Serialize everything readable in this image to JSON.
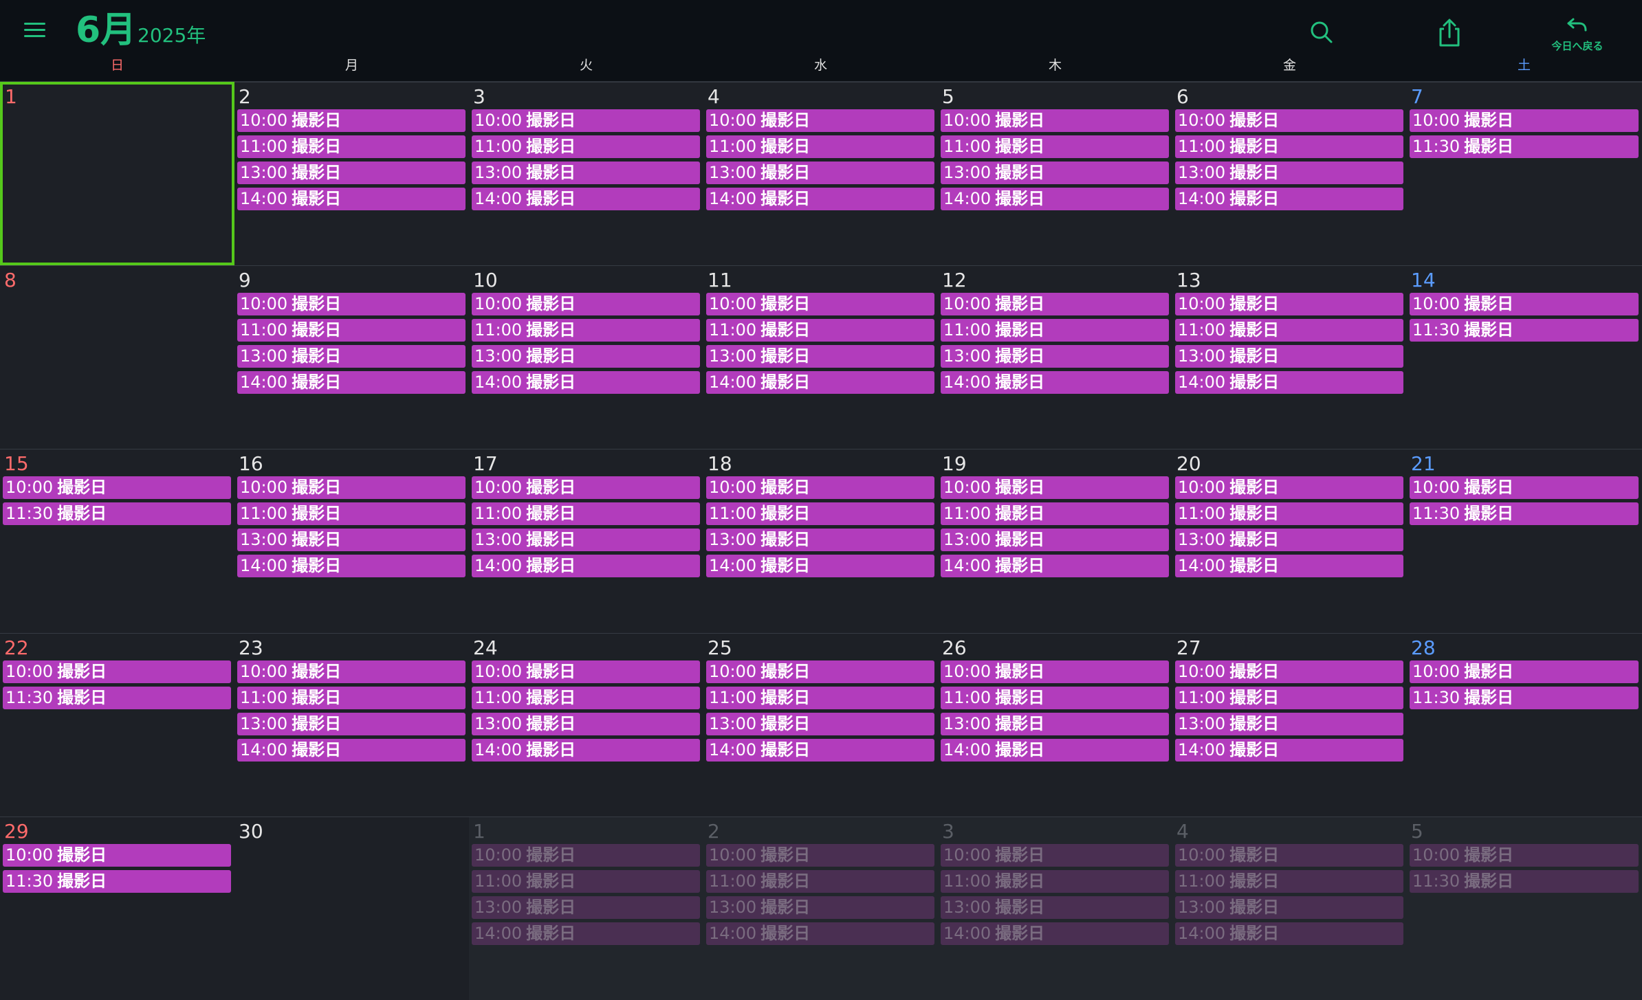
{
  "header": {
    "month": "6月",
    "year": "2025年",
    "today_button_label": "今日へ戻る"
  },
  "icons": {
    "menu": "hamburger-menu-icon",
    "search": "search-icon",
    "share": "share-icon",
    "today": "return-arrow-icon"
  },
  "colors": {
    "accent": "#22c07e",
    "event": "#b23cbc",
    "event_outside": "#4a2f52",
    "sunday": "#ff6b6b",
    "saturday": "#5b9cff",
    "today_border": "#55c81b",
    "background": "#1d2026",
    "header_background": "#0c1015"
  },
  "weekdays": [
    {
      "label": "日",
      "type": "sun"
    },
    {
      "label": "月",
      "type": ""
    },
    {
      "label": "火",
      "type": ""
    },
    {
      "label": "水",
      "type": ""
    },
    {
      "label": "木",
      "type": ""
    },
    {
      "label": "金",
      "type": ""
    },
    {
      "label": "土",
      "type": "sat"
    }
  ],
  "weeks": [
    [
      {
        "day": "1",
        "today": true,
        "events": []
      },
      {
        "day": "2",
        "events": [
          {
            "time": "10:00",
            "title": "撮影日"
          },
          {
            "time": "11:00",
            "title": "撮影日"
          },
          {
            "time": "13:00",
            "title": "撮影日"
          },
          {
            "time": "14:00",
            "title": "撮影日"
          }
        ]
      },
      {
        "day": "3",
        "events": [
          {
            "time": "10:00",
            "title": "撮影日"
          },
          {
            "time": "11:00",
            "title": "撮影日"
          },
          {
            "time": "13:00",
            "title": "撮影日"
          },
          {
            "time": "14:00",
            "title": "撮影日"
          }
        ]
      },
      {
        "day": "4",
        "events": [
          {
            "time": "10:00",
            "title": "撮影日"
          },
          {
            "time": "11:00",
            "title": "撮影日"
          },
          {
            "time": "13:00",
            "title": "撮影日"
          },
          {
            "time": "14:00",
            "title": "撮影日"
          }
        ]
      },
      {
        "day": "5",
        "events": [
          {
            "time": "10:00",
            "title": "撮影日"
          },
          {
            "time": "11:00",
            "title": "撮影日"
          },
          {
            "time": "13:00",
            "title": "撮影日"
          },
          {
            "time": "14:00",
            "title": "撮影日"
          }
        ]
      },
      {
        "day": "6",
        "events": [
          {
            "time": "10:00",
            "title": "撮影日"
          },
          {
            "time": "11:00",
            "title": "撮影日"
          },
          {
            "time": "13:00",
            "title": "撮影日"
          },
          {
            "time": "14:00",
            "title": "撮影日"
          }
        ]
      },
      {
        "day": "7",
        "events": [
          {
            "time": "10:00",
            "title": "撮影日"
          },
          {
            "time": "11:30",
            "title": "撮影日"
          }
        ]
      }
    ],
    [
      {
        "day": "8",
        "events": []
      },
      {
        "day": "9",
        "events": [
          {
            "time": "10:00",
            "title": "撮影日"
          },
          {
            "time": "11:00",
            "title": "撮影日"
          },
          {
            "time": "13:00",
            "title": "撮影日"
          },
          {
            "time": "14:00",
            "title": "撮影日"
          }
        ]
      },
      {
        "day": "10",
        "events": [
          {
            "time": "10:00",
            "title": "撮影日"
          },
          {
            "time": "11:00",
            "title": "撮影日"
          },
          {
            "time": "13:00",
            "title": "撮影日"
          },
          {
            "time": "14:00",
            "title": "撮影日"
          }
        ]
      },
      {
        "day": "11",
        "events": [
          {
            "time": "10:00",
            "title": "撮影日"
          },
          {
            "time": "11:00",
            "title": "撮影日"
          },
          {
            "time": "13:00",
            "title": "撮影日"
          },
          {
            "time": "14:00",
            "title": "撮影日"
          }
        ]
      },
      {
        "day": "12",
        "events": [
          {
            "time": "10:00",
            "title": "撮影日"
          },
          {
            "time": "11:00",
            "title": "撮影日"
          },
          {
            "time": "13:00",
            "title": "撮影日"
          },
          {
            "time": "14:00",
            "title": "撮影日"
          }
        ]
      },
      {
        "day": "13",
        "events": [
          {
            "time": "10:00",
            "title": "撮影日"
          },
          {
            "time": "11:00",
            "title": "撮影日"
          },
          {
            "time": "13:00",
            "title": "撮影日"
          },
          {
            "time": "14:00",
            "title": "撮影日"
          }
        ]
      },
      {
        "day": "14",
        "events": [
          {
            "time": "10:00",
            "title": "撮影日"
          },
          {
            "time": "11:30",
            "title": "撮影日"
          }
        ]
      }
    ],
    [
      {
        "day": "15",
        "events": [
          {
            "time": "10:00",
            "title": "撮影日"
          },
          {
            "time": "11:30",
            "title": "撮影日"
          }
        ]
      },
      {
        "day": "16",
        "events": [
          {
            "time": "10:00",
            "title": "撮影日"
          },
          {
            "time": "11:00",
            "title": "撮影日"
          },
          {
            "time": "13:00",
            "title": "撮影日"
          },
          {
            "time": "14:00",
            "title": "撮影日"
          }
        ]
      },
      {
        "day": "17",
        "events": [
          {
            "time": "10:00",
            "title": "撮影日"
          },
          {
            "time": "11:00",
            "title": "撮影日"
          },
          {
            "time": "13:00",
            "title": "撮影日"
          },
          {
            "time": "14:00",
            "title": "撮影日"
          }
        ]
      },
      {
        "day": "18",
        "events": [
          {
            "time": "10:00",
            "title": "撮影日"
          },
          {
            "time": "11:00",
            "title": "撮影日"
          },
          {
            "time": "13:00",
            "title": "撮影日"
          },
          {
            "time": "14:00",
            "title": "撮影日"
          }
        ]
      },
      {
        "day": "19",
        "events": [
          {
            "time": "10:00",
            "title": "撮影日"
          },
          {
            "time": "11:00",
            "title": "撮影日"
          },
          {
            "time": "13:00",
            "title": "撮影日"
          },
          {
            "time": "14:00",
            "title": "撮影日"
          }
        ]
      },
      {
        "day": "20",
        "events": [
          {
            "time": "10:00",
            "title": "撮影日"
          },
          {
            "time": "11:00",
            "title": "撮影日"
          },
          {
            "time": "13:00",
            "title": "撮影日"
          },
          {
            "time": "14:00",
            "title": "撮影日"
          }
        ]
      },
      {
        "day": "21",
        "events": [
          {
            "time": "10:00",
            "title": "撮影日"
          },
          {
            "time": "11:30",
            "title": "撮影日"
          }
        ]
      }
    ],
    [
      {
        "day": "22",
        "events": [
          {
            "time": "10:00",
            "title": "撮影日"
          },
          {
            "time": "11:30",
            "title": "撮影日"
          }
        ]
      },
      {
        "day": "23",
        "events": [
          {
            "time": "10:00",
            "title": "撮影日"
          },
          {
            "time": "11:00",
            "title": "撮影日"
          },
          {
            "time": "13:00",
            "title": "撮影日"
          },
          {
            "time": "14:00",
            "title": "撮影日"
          }
        ]
      },
      {
        "day": "24",
        "events": [
          {
            "time": "10:00",
            "title": "撮影日"
          },
          {
            "time": "11:00",
            "title": "撮影日"
          },
          {
            "time": "13:00",
            "title": "撮影日"
          },
          {
            "time": "14:00",
            "title": "撮影日"
          }
        ]
      },
      {
        "day": "25",
        "events": [
          {
            "time": "10:00",
            "title": "撮影日"
          },
          {
            "time": "11:00",
            "title": "撮影日"
          },
          {
            "time": "13:00",
            "title": "撮影日"
          },
          {
            "time": "14:00",
            "title": "撮影日"
          }
        ]
      },
      {
        "day": "26",
        "events": [
          {
            "time": "10:00",
            "title": "撮影日"
          },
          {
            "time": "11:00",
            "title": "撮影日"
          },
          {
            "time": "13:00",
            "title": "撮影日"
          },
          {
            "time": "14:00",
            "title": "撮影日"
          }
        ]
      },
      {
        "day": "27",
        "events": [
          {
            "time": "10:00",
            "title": "撮影日"
          },
          {
            "time": "11:00",
            "title": "撮影日"
          },
          {
            "time": "13:00",
            "title": "撮影日"
          },
          {
            "time": "14:00",
            "title": "撮影日"
          }
        ]
      },
      {
        "day": "28",
        "events": [
          {
            "time": "10:00",
            "title": "撮影日"
          },
          {
            "time": "11:30",
            "title": "撮影日"
          }
        ]
      }
    ],
    [
      {
        "day": "29",
        "events": [
          {
            "time": "10:00",
            "title": "撮影日"
          },
          {
            "time": "11:30",
            "title": "撮影日"
          }
        ]
      },
      {
        "day": "30",
        "events": []
      },
      {
        "day": "1",
        "outside": true,
        "events": [
          {
            "time": "10:00",
            "title": "撮影日"
          },
          {
            "time": "11:00",
            "title": "撮影日"
          },
          {
            "time": "13:00",
            "title": "撮影日"
          },
          {
            "time": "14:00",
            "title": "撮影日"
          }
        ]
      },
      {
        "day": "2",
        "outside": true,
        "events": [
          {
            "time": "10:00",
            "title": "撮影日"
          },
          {
            "time": "11:00",
            "title": "撮影日"
          },
          {
            "time": "13:00",
            "title": "撮影日"
          },
          {
            "time": "14:00",
            "title": "撮影日"
          }
        ]
      },
      {
        "day": "3",
        "outside": true,
        "events": [
          {
            "time": "10:00",
            "title": "撮影日"
          },
          {
            "time": "11:00",
            "title": "撮影日"
          },
          {
            "time": "13:00",
            "title": "撮影日"
          },
          {
            "time": "14:00",
            "title": "撮影日"
          }
        ]
      },
      {
        "day": "4",
        "outside": true,
        "events": [
          {
            "time": "10:00",
            "title": "撮影日"
          },
          {
            "time": "11:00",
            "title": "撮影日"
          },
          {
            "time": "13:00",
            "title": "撮影日"
          },
          {
            "time": "14:00",
            "title": "撮影日"
          }
        ]
      },
      {
        "day": "5",
        "outside": true,
        "events": [
          {
            "time": "10:00",
            "title": "撮影日"
          },
          {
            "time": "11:30",
            "title": "撮影日"
          }
        ]
      }
    ]
  ]
}
